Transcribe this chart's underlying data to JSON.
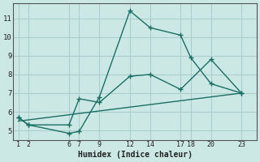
{
  "xlabel": "Humidex (Indice chaleur)",
  "bg_color": "#cce8e4",
  "grid_color": "#aacfcc",
  "line_color": "#1a6e65",
  "line1": {
    "x": [
      1,
      2,
      6,
      7,
      9,
      12,
      14,
      17,
      18,
      20,
      23
    ],
    "y": [
      5.7,
      5.3,
      4.85,
      4.95,
      6.8,
      11.4,
      10.5,
      10.1,
      8.9,
      7.5,
      7.0
    ]
  },
  "line2": {
    "x": [
      1,
      2,
      6,
      7,
      9,
      12,
      14,
      17,
      20,
      23
    ],
    "y": [
      5.7,
      5.3,
      5.3,
      6.7,
      6.5,
      7.9,
      8.0,
      7.2,
      8.8,
      7.0
    ]
  },
  "line3": {
    "x": [
      1,
      23
    ],
    "y": [
      5.5,
      7.0
    ]
  },
  "xlim": [
    0.5,
    24.5
  ],
  "ylim": [
    4.5,
    11.8
  ],
  "xticks": [
    1,
    2,
    6,
    7,
    9,
    12,
    14,
    17,
    18,
    20,
    23
  ],
  "yticks": [
    5,
    6,
    7,
    8,
    9,
    10,
    11
  ]
}
